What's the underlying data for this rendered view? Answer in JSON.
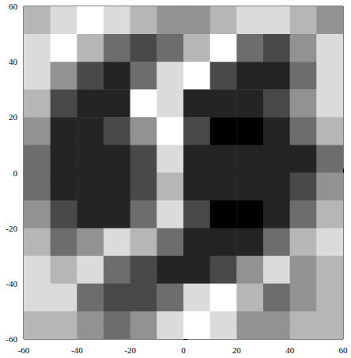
{
  "chart_data": {
    "type": "heatmap",
    "x": [
      -55,
      -45,
      -35,
      -25,
      -15,
      -5,
      5,
      15,
      25,
      35,
      45,
      55
    ],
    "y": [
      55,
      45,
      35,
      25,
      15,
      5,
      -5,
      -15,
      -25,
      -35,
      -45,
      -55
    ],
    "cells": [
      [
        5,
        6,
        7,
        6,
        5,
        4,
        4,
        5,
        6,
        6,
        5,
        4
      ],
      [
        6,
        7,
        5,
        3,
        2,
        3,
        5,
        7,
        3,
        2,
        4,
        6
      ],
      [
        6,
        4,
        2,
        1,
        3,
        6,
        7,
        2,
        1,
        1,
        3,
        6
      ],
      [
        5,
        2,
        1,
        1,
        7,
        6,
        1,
        1,
        1,
        2,
        4,
        6
      ],
      [
        4,
        1,
        1,
        2,
        4,
        7,
        2,
        0,
        0,
        1,
        3,
        5
      ],
      [
        3,
        1,
        1,
        1,
        2,
        6,
        1,
        1,
        1,
        1,
        1,
        3
      ],
      [
        3,
        1,
        1,
        1,
        2,
        5,
        1,
        1,
        1,
        1,
        2,
        4
      ],
      [
        4,
        2,
        1,
        1,
        3,
        6,
        2,
        0,
        0,
        1,
        3,
        5
      ],
      [
        5,
        3,
        4,
        6,
        5,
        3,
        1,
        1,
        1,
        3,
        5,
        6
      ],
      [
        6,
        5,
        6,
        3,
        2,
        1,
        1,
        2,
        4,
        6,
        4,
        5
      ],
      [
        6,
        6,
        3,
        2,
        2,
        3,
        6,
        7,
        5,
        3,
        4,
        5
      ],
      [
        5,
        5,
        4,
        3,
        4,
        6,
        7,
        6,
        4,
        4,
        5,
        5
      ]
    ],
    "xlim": [
      -60,
      60
    ],
    "xticks": [
      -60,
      -40,
      -20,
      0,
      20,
      40,
      60
    ],
    "ylim": [
      -60,
      60
    ],
    "yticks": [
      -60,
      -40,
      -20,
      0,
      20,
      40,
      60
    ],
    "grid": false
  }
}
